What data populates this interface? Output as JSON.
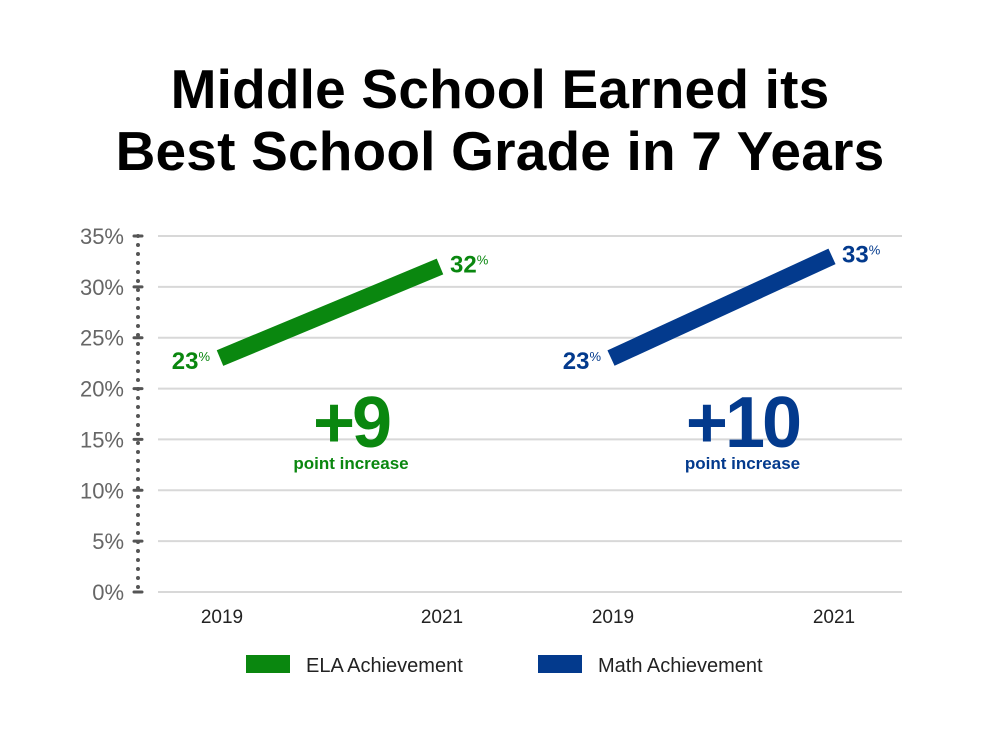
{
  "title": {
    "line1": "Middle School Earned its",
    "line2": "Best School Grade in 7 Years"
  },
  "colors": {
    "ela": "#0a870f",
    "math": "#033a8d",
    "grid": "#d8d8d8",
    "axis": "#555555"
  },
  "chart_data": {
    "type": "line",
    "ylim": [
      0,
      35
    ],
    "ytick_values": [
      0,
      5,
      10,
      15,
      20,
      25,
      30,
      35
    ],
    "yticks": [
      "0%",
      "5%",
      "10%",
      "15%",
      "20%",
      "25%",
      "30%",
      "35%"
    ],
    "grid": true,
    "legend_position": "bottom-center",
    "series": [
      {
        "name": "ELA Achievement",
        "x": [
          "2019",
          "2021"
        ],
        "values": [
          23,
          32
        ],
        "labels": [
          "23",
          "32"
        ],
        "change_value": "+9",
        "change_label": "point increase",
        "color": "#0a870f"
      },
      {
        "name": "Math  Achievement",
        "x": [
          "2019",
          "2021"
        ],
        "values": [
          23,
          33
        ],
        "labels": [
          "23",
          "33"
        ],
        "change_value": "+10",
        "change_label": "point increase",
        "color": "#033a8d"
      }
    ],
    "percent_sign": "%"
  }
}
